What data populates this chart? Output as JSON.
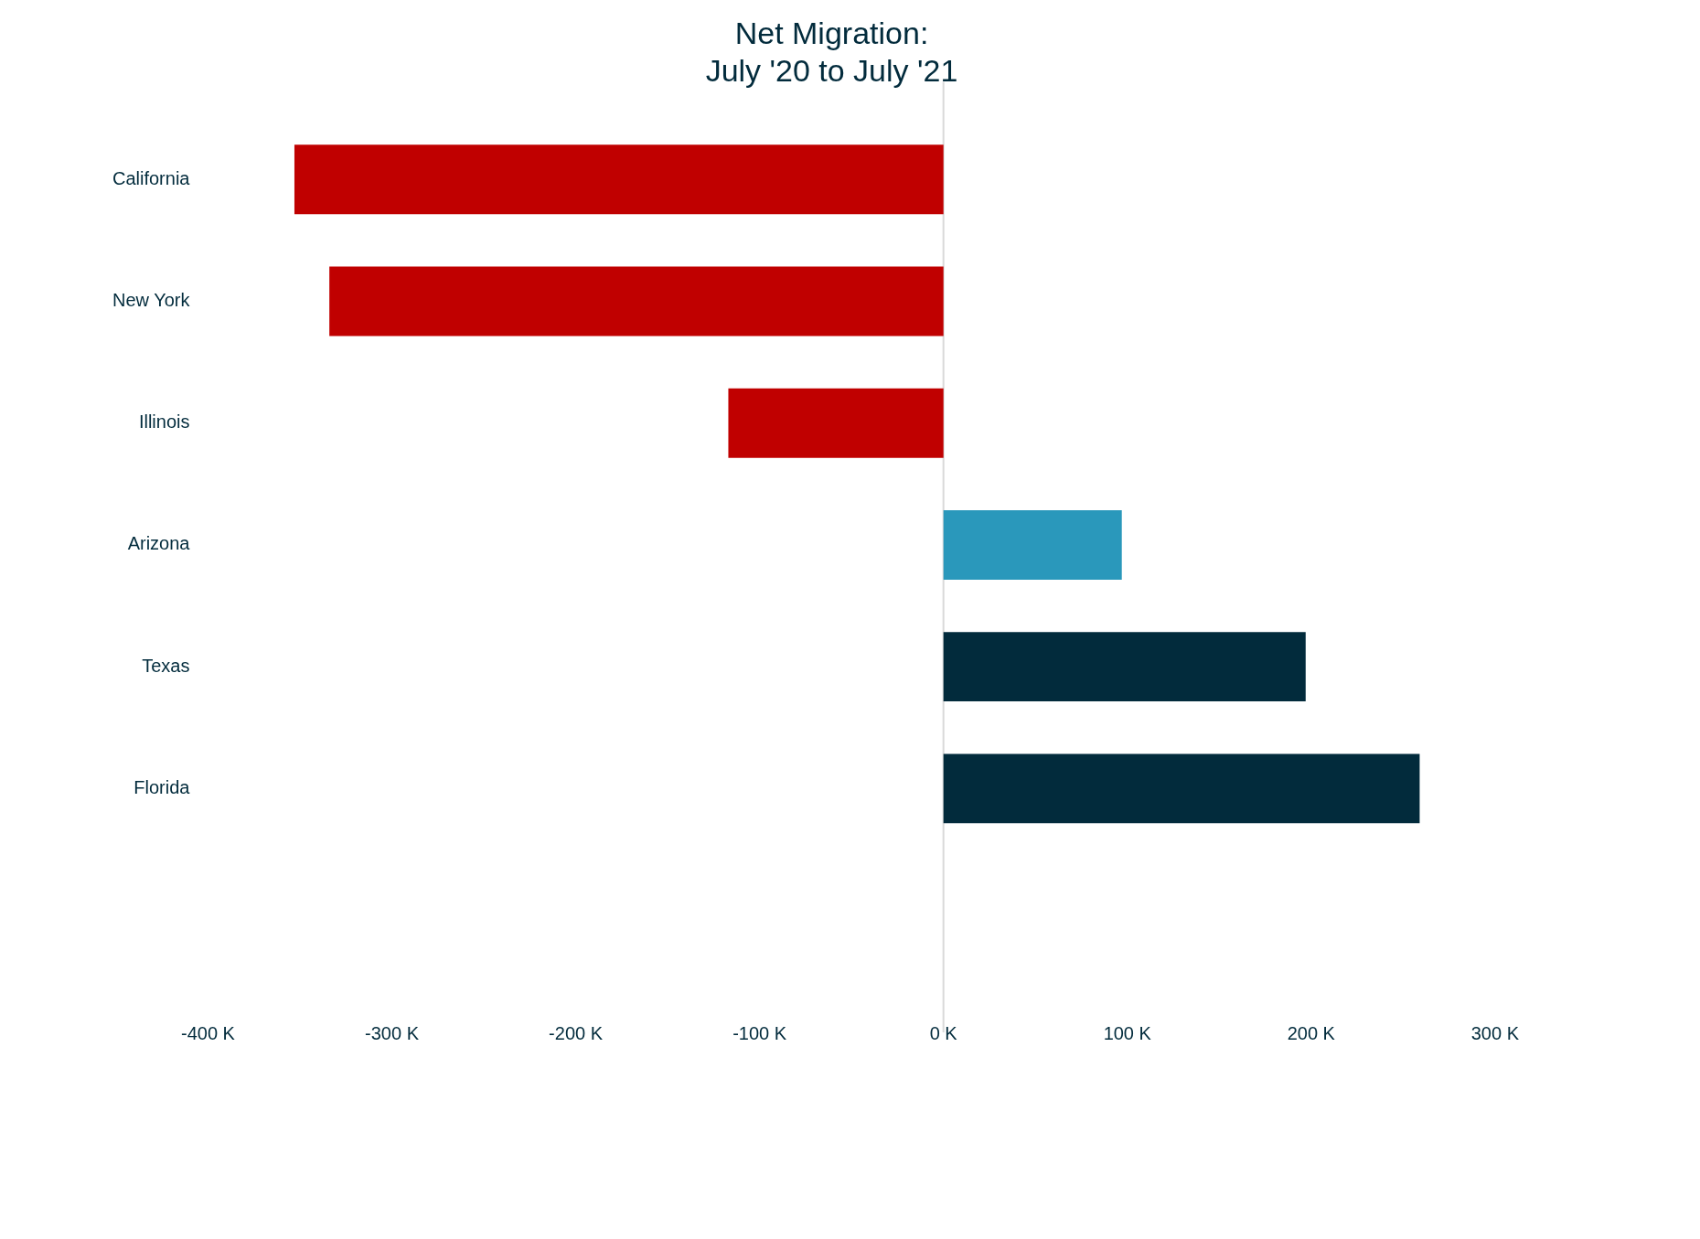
{
  "chart_data": {
    "type": "bar",
    "orientation": "horizontal",
    "title": "Net Migration:\nJuly '20 to July '21",
    "categories": [
      "California",
      "New York",
      "Illinois",
      "Arizona",
      "Texas",
      "Florida"
    ],
    "values": [
      -353,
      -334,
      -117,
      97,
      197,
      259
    ],
    "colors": [
      "#c00000",
      "#c00000",
      "#c00000",
      "#2a98bb",
      "#022b3c",
      "#022b3c"
    ],
    "xlim": [
      -400,
      300
    ],
    "xticks": [
      {
        "value": -400,
        "label": "-400 K"
      },
      {
        "value": -300,
        "label": "-300 K"
      },
      {
        "value": -200,
        "label": "-200 K"
      },
      {
        "value": -100,
        "label": "-100 K"
      },
      {
        "value": 0,
        "label": "0 K"
      },
      {
        "value": 100,
        "label": "100 K"
      },
      {
        "value": 200,
        "label": "200 K"
      },
      {
        "value": 300,
        "label": "300 K"
      }
    ],
    "ref_lines": [
      {
        "axis": "x",
        "value": 0,
        "color": "#d9d9d9"
      }
    ],
    "grid": false,
    "legend": false
  }
}
